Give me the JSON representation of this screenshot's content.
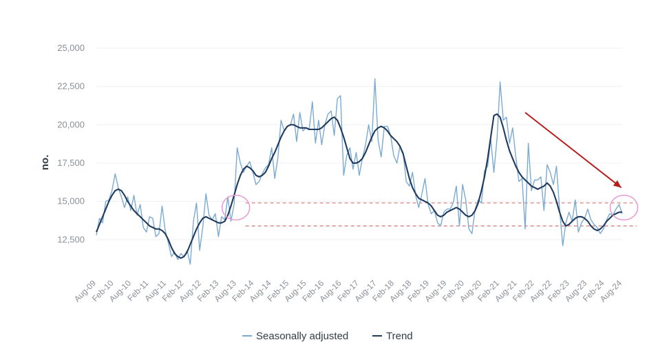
{
  "chart_data": {
    "type": "line",
    "ylabel": "no.",
    "xlabel": "",
    "ylim": [
      10000,
      25000
    ],
    "yticks": [
      12500,
      15000,
      17500,
      20000,
      22500,
      25000
    ],
    "ytick_labels": [
      "12,500",
      "15,000",
      "17,500",
      "20,000",
      "22,500",
      "25,000"
    ],
    "xtick_labels": [
      "Aug-09",
      "Feb-10",
      "Aug-10",
      "Feb-11",
      "Aug-11",
      "Feb-12",
      "Aug-12",
      "Feb-13",
      "Aug-13",
      "Feb-14",
      "Aug-14",
      "Feb-15",
      "Aug-15",
      "Feb-16",
      "Aug-16",
      "Feb-17",
      "Aug-17",
      "Feb-18",
      "Aug-18",
      "Feb-19",
      "Aug-19",
      "Feb-20",
      "Aug-20",
      "Feb-21",
      "Aug-21",
      "Feb-22",
      "Aug-22",
      "Feb-23",
      "Aug-23",
      "Feb-24",
      "Aug-24"
    ],
    "grid": true,
    "legend_position": "bottom",
    "colors": {
      "seasonally_adjusted": "#7aaad2",
      "trend": "#1f3a5f",
      "arrow": "#b71c1c",
      "reference_lines": "#d98080",
      "highlight_circles": "#e89ad0"
    },
    "series": [
      {
        "name": "Seasonally adjusted",
        "values": [
          12800,
          13900,
          13600,
          15000,
          15100,
          15700,
          16800,
          15900,
          15300,
          14600,
          15300,
          14400,
          15400,
          14100,
          14800,
          13300,
          13000,
          14000,
          13900,
          12700,
          12900,
          14700,
          13100,
          12300,
          11400,
          11700,
          11200,
          11600,
          11400,
          11800,
          10900,
          13700,
          14900,
          11800,
          13300,
          15500,
          14100,
          13800,
          14200,
          12700,
          14000,
          13800,
          15300,
          13700,
          14800,
          18500,
          17500,
          16900,
          17300,
          17600,
          16900,
          16100,
          16300,
          16800,
          17200,
          17400,
          18500,
          16500,
          17900,
          20300,
          19600,
          19900,
          20000,
          20700,
          18900,
          20800,
          19600,
          19800,
          19700,
          21500,
          18800,
          20300,
          18700,
          20000,
          20700,
          20900,
          19300,
          21700,
          21900,
          16700,
          18000,
          18500,
          17100,
          18200,
          16700,
          17800,
          18700,
          20000,
          18900,
          23000,
          19000,
          17900,
          19900,
          19900,
          19300,
          18000,
          17500,
          18600,
          18200,
          16300,
          16000,
          16900,
          15400,
          14600,
          15500,
          16500,
          14800,
          14200,
          14400,
          13600,
          13400,
          14300,
          14500,
          14500,
          14900,
          16000,
          13400,
          16100,
          15100,
          13200,
          12900,
          14500,
          15100,
          14900,
          17000,
          17300,
          19100,
          16900,
          19100,
          22800,
          20300,
          20500,
          18800,
          19800,
          17900,
          16300,
          16500,
          13200,
          18800,
          15700,
          16400,
          16400,
          16600,
          14400,
          17400,
          16900,
          16100,
          17300,
          14500,
          12100,
          13600,
          14300,
          13700,
          15100,
          13000,
          13600,
          13900,
          14500,
          13800,
          13500,
          13300,
          12900,
          13200,
          13800,
          14200,
          14100,
          14500,
          14800,
          14200
        ]
      },
      {
        "name": "Trend",
        "values": [
          13000,
          13500,
          14000,
          14500,
          15000,
          15400,
          15700,
          15800,
          15700,
          15400,
          15000,
          14700,
          14400,
          14200,
          14000,
          13800,
          13600,
          13400,
          13300,
          13200,
          13200,
          13100,
          12900,
          12500,
          12000,
          11600,
          11400,
          11300,
          11400,
          11700,
          12200,
          12700,
          13200,
          13600,
          13900,
          14000,
          13900,
          13800,
          13700,
          13600,
          13600,
          13700,
          14100,
          14700,
          15400,
          16100,
          16700,
          17100,
          17300,
          17200,
          17000,
          16700,
          16600,
          16700,
          16900,
          17300,
          17800,
          18200,
          18700,
          19200,
          19600,
          19900,
          20000,
          20000,
          19900,
          19800,
          19800,
          19800,
          19700,
          19700,
          19700,
          19700,
          19800,
          20000,
          20200,
          20400,
          20500,
          20300,
          19800,
          19200,
          18500,
          17800,
          17500,
          17500,
          17600,
          17800,
          18200,
          18700,
          19200,
          19600,
          19800,
          19900,
          19800,
          19600,
          19300,
          19100,
          18900,
          18600,
          18100,
          17300,
          16500,
          15900,
          15500,
          15200,
          15100,
          15000,
          14900,
          14700,
          14400,
          14100,
          14000,
          14100,
          14300,
          14400,
          14500,
          14600,
          14500,
          14300,
          14100,
          14000,
          14100,
          14400,
          14900,
          15700,
          16600,
          17800,
          19200,
          20600,
          20700,
          20500,
          19800,
          19000,
          18300,
          17800,
          17300,
          16900,
          16600,
          16400,
          16200,
          16000,
          15900,
          15800,
          15900,
          16000,
          16200,
          16000,
          15600,
          15000,
          14300,
          13700,
          13400,
          13500,
          13700,
          13900,
          14000,
          14000,
          13900,
          13700,
          13400,
          13200,
          13100,
          13200,
          13400,
          13700,
          13900,
          14100,
          14200,
          14300,
          14300
        ]
      }
    ],
    "annotations": {
      "reference_lines": [
        14900,
        13400
      ],
      "circles": [
        {
          "x_index": 45,
          "y": 14600
        },
        {
          "x_index": 169,
          "y": 14600
        }
      ],
      "arrow": {
        "from": {
          "x_index": 137,
          "y": 20800
        },
        "to": {
          "x_index": 169,
          "y": 15900
        }
      }
    }
  }
}
